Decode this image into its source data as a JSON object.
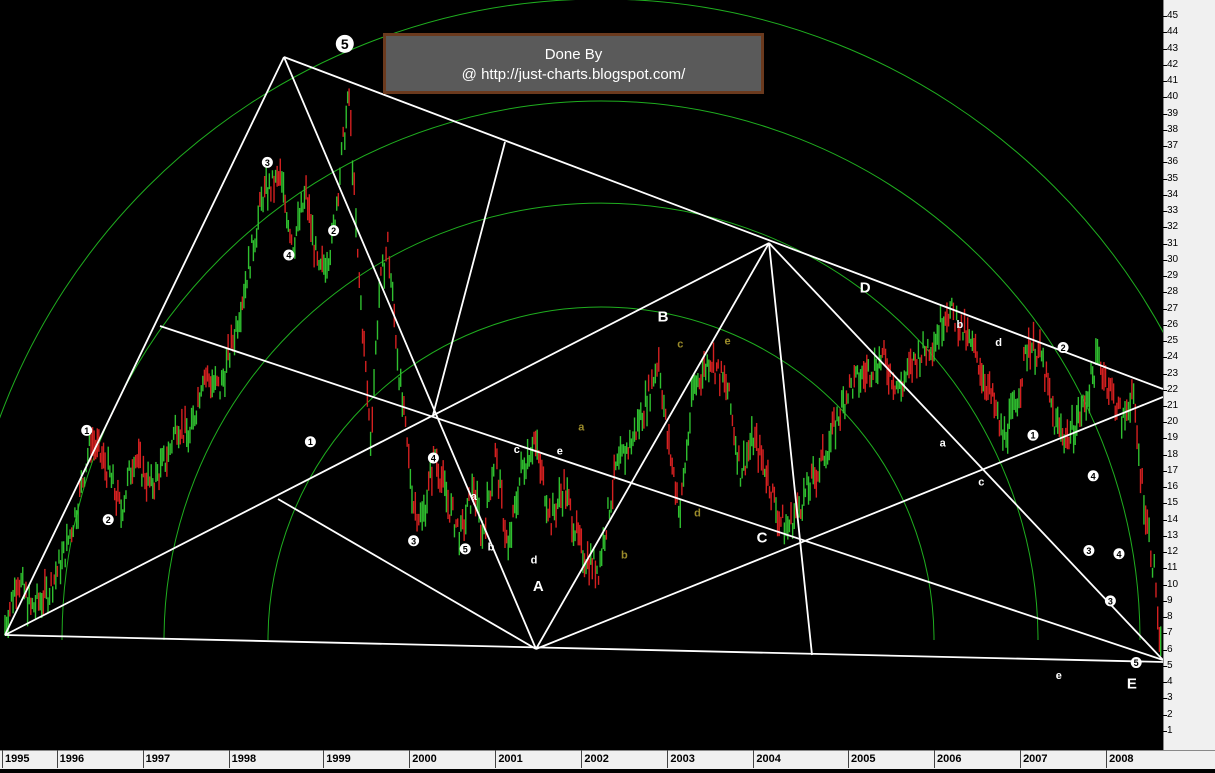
{
  "credit": {
    "line1": "Done By",
    "line2": "@ http://just-charts.blogspot.com/"
  },
  "colors": {
    "background": "#000000",
    "up_bar": "#2fbf2f",
    "down_bar": "#d42020",
    "trendline": "#ffffff",
    "arc": "#1fae1f",
    "primary_label": "#ffffff",
    "secondary_label": "#9a8a2a"
  },
  "chart_data": {
    "type": "line",
    "title": "",
    "xlabel": "",
    "ylabel": "",
    "xlim": [
      1995.0,
      2008.45
    ],
    "ylim": [
      0,
      46
    ],
    "y_ticks": [
      1,
      2,
      3,
      4,
      5,
      6,
      7,
      8,
      9,
      10,
      11,
      12,
      13,
      14,
      15,
      16,
      17,
      18,
      19,
      20,
      21,
      22,
      23,
      24,
      25,
      26,
      27,
      28,
      29,
      30,
      31,
      32,
      33,
      34,
      35,
      36,
      37,
      38,
      39,
      40,
      41,
      42,
      43,
      44,
      45
    ],
    "x_ticks": [
      {
        "label": "1995",
        "x": 1995.0
      },
      {
        "label": "1996",
        "x": 1995.6
      },
      {
        "label": "1997",
        "x": 1996.6
      },
      {
        "label": "1998",
        "x": 1997.6
      },
      {
        "label": "1999",
        "x": 1998.7
      },
      {
        "label": "2000",
        "x": 1999.7
      },
      {
        "label": "2001",
        "x": 2000.7
      },
      {
        "label": "2002",
        "x": 2001.7
      },
      {
        "label": "2003",
        "x": 2002.7
      },
      {
        "label": "2004",
        "x": 2003.7
      },
      {
        "label": "2005",
        "x": 2004.8
      },
      {
        "label": "2006",
        "x": 2005.8
      },
      {
        "label": "2007",
        "x": 2006.8
      },
      {
        "label": "2008",
        "x": 2007.8
      }
    ],
    "series": [
      {
        "points": [
          [
            1995.0,
            7.5
          ],
          [
            1995.15,
            10.5
          ],
          [
            1995.3,
            8.5
          ],
          [
            1995.5,
            9.5
          ],
          [
            1995.7,
            12
          ],
          [
            1995.85,
            15
          ],
          [
            1996.0,
            19
          ],
          [
            1996.2,
            17
          ],
          [
            1996.35,
            14.5
          ],
          [
            1996.5,
            18
          ],
          [
            1996.7,
            16
          ],
          [
            1996.9,
            18
          ],
          [
            1997.0,
            20
          ],
          [
            1997.15,
            19
          ],
          [
            1997.3,
            23
          ],
          [
            1997.5,
            22
          ],
          [
            1997.65,
            25
          ],
          [
            1997.85,
            30
          ],
          [
            1998.0,
            34
          ],
          [
            1998.2,
            35
          ],
          [
            1998.35,
            31
          ],
          [
            1998.5,
            34
          ],
          [
            1998.65,
            29
          ],
          [
            1998.8,
            31
          ],
          [
            1998.95,
            38
          ],
          [
            1999.0,
            40
          ],
          [
            1999.1,
            30
          ],
          [
            1999.25,
            19
          ],
          [
            1999.35,
            28
          ],
          [
            1999.45,
            31
          ],
          [
            1999.6,
            22
          ],
          [
            1999.75,
            15
          ],
          [
            1999.85,
            14
          ],
          [
            2000.0,
            18
          ],
          [
            2000.15,
            15
          ],
          [
            2000.3,
            13
          ],
          [
            2000.45,
            16
          ],
          [
            2000.55,
            13
          ],
          [
            2000.7,
            18
          ],
          [
            2000.85,
            12
          ],
          [
            2001.0,
            17
          ],
          [
            2001.15,
            19
          ],
          [
            2001.35,
            14
          ],
          [
            2001.5,
            16
          ],
          [
            2001.7,
            12
          ],
          [
            2001.9,
            11
          ],
          [
            2002.1,
            17
          ],
          [
            2002.3,
            19
          ],
          [
            2002.5,
            22
          ],
          [
            2002.6,
            24
          ],
          [
            2002.7,
            19
          ],
          [
            2002.85,
            14.5
          ],
          [
            2003.0,
            22
          ],
          [
            2003.2,
            24
          ],
          [
            2003.4,
            22
          ],
          [
            2003.55,
            17
          ],
          [
            2003.7,
            19
          ],
          [
            2003.85,
            17
          ],
          [
            2004.0,
            14
          ],
          [
            2004.1,
            13.5
          ],
          [
            2004.25,
            15
          ],
          [
            2004.45,
            17
          ],
          [
            2004.6,
            19
          ],
          [
            2004.8,
            22
          ],
          [
            2005.0,
            23
          ],
          [
            2005.2,
            24
          ],
          [
            2005.4,
            22
          ],
          [
            2005.6,
            24
          ],
          [
            2005.8,
            25
          ],
          [
            2005.95,
            27
          ],
          [
            2006.1,
            26
          ],
          [
            2006.3,
            24
          ],
          [
            2006.5,
            21
          ],
          [
            2006.6,
            19
          ],
          [
            2006.75,
            21
          ],
          [
            2006.9,
            25
          ],
          [
            2007.05,
            24
          ],
          [
            2007.2,
            20
          ],
          [
            2007.35,
            19
          ],
          [
            2007.55,
            21
          ],
          [
            2007.7,
            24
          ],
          [
            2007.85,
            22
          ],
          [
            2008.0,
            20
          ],
          [
            2008.1,
            22
          ],
          [
            2008.2,
            17
          ],
          [
            2008.3,
            13
          ],
          [
            2008.38,
            10
          ],
          [
            2008.42,
            6
          ],
          [
            2008.45,
            5.5
          ]
        ]
      }
    ],
    "wave_labels": [
      {
        "text": "5",
        "x": 1998.95,
        "y": 43.3,
        "style": "circle-large"
      },
      {
        "text": "1",
        "x": 1995.95,
        "y": 19.5,
        "style": "circle"
      },
      {
        "text": "2",
        "x": 1996.2,
        "y": 14,
        "style": "circle"
      },
      {
        "text": "3",
        "x": 1998.05,
        "y": 36,
        "style": "circle"
      },
      {
        "text": "4",
        "x": 1998.3,
        "y": 30.3,
        "style": "circle"
      },
      {
        "text": "1",
        "x": 1998.55,
        "y": 18.8,
        "style": "circle"
      },
      {
        "text": "2",
        "x": 1998.82,
        "y": 31.8,
        "style": "circle"
      },
      {
        "text": "3",
        "x": 1999.75,
        "y": 12.7,
        "style": "circle"
      },
      {
        "text": "4",
        "x": 1999.98,
        "y": 17.8,
        "style": "circle"
      },
      {
        "text": "5",
        "x": 2000.35,
        "y": 12.2,
        "style": "circle"
      },
      {
        "text": "1",
        "x": 2006.95,
        "y": 19.2,
        "style": "circle"
      },
      {
        "text": "2",
        "x": 2007.3,
        "y": 24.6,
        "style": "circle"
      },
      {
        "text": "3",
        "x": 2007.6,
        "y": 12.1,
        "style": "circle"
      },
      {
        "text": "4",
        "x": 2007.65,
        "y": 16.7,
        "style": "circle"
      },
      {
        "text": "3",
        "x": 2007.85,
        "y": 9,
        "style": "circle"
      },
      {
        "text": "4",
        "x": 2007.95,
        "y": 11.9,
        "style": "circle"
      },
      {
        "text": "5",
        "x": 2008.15,
        "y": 5.2,
        "style": "circle"
      },
      {
        "text": "a",
        "x": 2000.45,
        "y": 15.2,
        "style": "small-white"
      },
      {
        "text": "b",
        "x": 2000.65,
        "y": 12.1,
        "style": "small-white"
      },
      {
        "text": "c",
        "x": 2000.95,
        "y": 18.1,
        "style": "small-white"
      },
      {
        "text": "d",
        "x": 2001.15,
        "y": 11.3,
        "style": "small-white"
      },
      {
        "text": "e",
        "x": 2001.45,
        "y": 18.0,
        "style": "small-white"
      },
      {
        "text": "a",
        "x": 2001.7,
        "y": 19.5,
        "style": "small-olive"
      },
      {
        "text": "b",
        "x": 2002.2,
        "y": 11.6,
        "style": "small-olive"
      },
      {
        "text": "c",
        "x": 2002.85,
        "y": 24.6,
        "style": "small-olive"
      },
      {
        "text": "d",
        "x": 2003.05,
        "y": 14.2,
        "style": "small-olive"
      },
      {
        "text": "e",
        "x": 2003.4,
        "y": 24.8,
        "style": "small-olive"
      },
      {
        "text": "a",
        "x": 2005.9,
        "y": 18.5,
        "style": "small-white"
      },
      {
        "text": "b",
        "x": 2006.1,
        "y": 25.8,
        "style": "small-white"
      },
      {
        "text": "c",
        "x": 2006.35,
        "y": 16.1,
        "style": "small-white"
      },
      {
        "text": "d",
        "x": 2006.55,
        "y": 24.7,
        "style": "small-white"
      },
      {
        "text": "e",
        "x": 2007.25,
        "y": 4.2,
        "style": "small-white"
      },
      {
        "text": "A",
        "x": 2001.2,
        "y": 9.6,
        "style": "big"
      },
      {
        "text": "B",
        "x": 2002.65,
        "y": 26.2,
        "style": "big"
      },
      {
        "text": "C",
        "x": 2003.8,
        "y": 12.6,
        "style": "big"
      },
      {
        "text": "D",
        "x": 2005.0,
        "y": 28.0,
        "style": "big"
      },
      {
        "text": "E",
        "x": 2008.1,
        "y": 3.6,
        "style": "big"
      }
    ],
    "grid": false,
    "legend": "none"
  }
}
